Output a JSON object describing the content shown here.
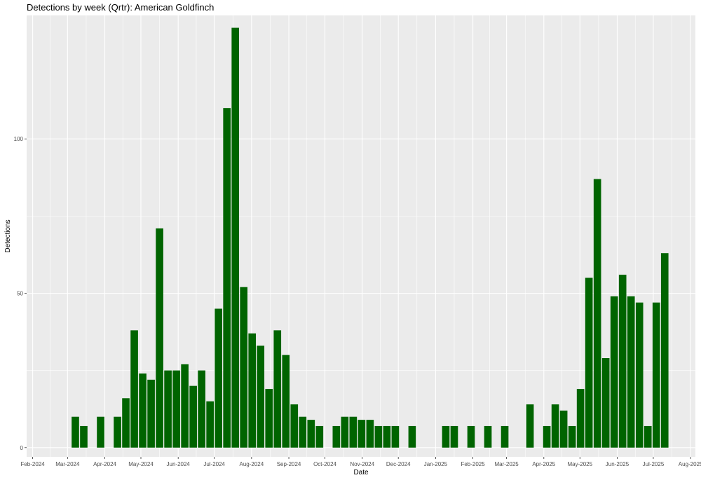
{
  "chart_data": {
    "type": "bar",
    "title": "Detections by week (Qrtr): American Goldfinch",
    "xlabel": "Date",
    "ylabel": "Detections",
    "ylim": [
      -3,
      140
    ],
    "yticks": [
      0,
      50,
      100
    ],
    "bar_color": "#006400",
    "panel_bg": "#ebebeb",
    "grid": true,
    "x_domain": [
      "2024-01-27",
      "2025-08-05"
    ],
    "xtick_labels": [
      {
        "date": "2024-02-01",
        "label": "Feb-2024"
      },
      {
        "date": "2024-03-01",
        "label": "Mar-2024"
      },
      {
        "date": "2024-04-01",
        "label": "Apr-2024"
      },
      {
        "date": "2024-05-01",
        "label": "May-2024"
      },
      {
        "date": "2024-06-01",
        "label": "Jun-2024"
      },
      {
        "date": "2024-07-01",
        "label": "Jul-2024"
      },
      {
        "date": "2024-08-01",
        "label": "Aug-2024"
      },
      {
        "date": "2024-09-01",
        "label": "Sep-2024"
      },
      {
        "date": "2024-10-01",
        "label": "Oct-2024"
      },
      {
        "date": "2024-11-01",
        "label": "Nov-2024"
      },
      {
        "date": "2024-12-01",
        "label": "Dec-2024"
      },
      {
        "date": "2025-01-01",
        "label": "Jan-2025"
      },
      {
        "date": "2025-02-01",
        "label": "Feb-2025"
      },
      {
        "date": "2025-03-01",
        "label": "Mar-2025"
      },
      {
        "date": "2025-04-01",
        "label": "Apr-2025"
      },
      {
        "date": "2025-05-01",
        "label": "May-2025"
      },
      {
        "date": "2025-06-01",
        "label": "Jun-2025"
      },
      {
        "date": "2025-07-01",
        "label": "Jul-2025"
      },
      {
        "date": "2025-08-01",
        "label": "Aug-2025"
      }
    ],
    "x": [
      "2024-03-04",
      "2024-03-11",
      "2024-03-25",
      "2024-04-08",
      "2024-04-15",
      "2024-04-22",
      "2024-04-29",
      "2024-05-06",
      "2024-05-13",
      "2024-05-20",
      "2024-05-27",
      "2024-06-03",
      "2024-06-10",
      "2024-06-17",
      "2024-06-24",
      "2024-07-01",
      "2024-07-08",
      "2024-07-15",
      "2024-07-22",
      "2024-07-29",
      "2024-08-05",
      "2024-08-12",
      "2024-08-19",
      "2024-08-26",
      "2024-09-02",
      "2024-09-09",
      "2024-09-16",
      "2024-09-23",
      "2024-10-07",
      "2024-10-14",
      "2024-10-21",
      "2024-10-28",
      "2024-11-04",
      "2024-11-11",
      "2024-11-18",
      "2024-11-25",
      "2024-12-09",
      "2025-01-06",
      "2025-01-13",
      "2025-01-27",
      "2025-02-10",
      "2025-02-24",
      "2025-03-17",
      "2025-03-31",
      "2025-04-07",
      "2025-04-14",
      "2025-04-21",
      "2025-04-28",
      "2025-05-05",
      "2025-05-12",
      "2025-05-19",
      "2025-05-26",
      "2025-06-02",
      "2025-06-09",
      "2025-06-16",
      "2025-06-23",
      "2025-06-30",
      "2025-07-07"
    ],
    "values": [
      10,
      7,
      10,
      10,
      16,
      38,
      24,
      22,
      71,
      25,
      25,
      27,
      20,
      25,
      15,
      45,
      110,
      136,
      52,
      37,
      33,
      19,
      38,
      30,
      14,
      10,
      9,
      7,
      7,
      10,
      10,
      9,
      9,
      7,
      7,
      7,
      7,
      7,
      7,
      7,
      7,
      7,
      14,
      7,
      14,
      12,
      7,
      19,
      55,
      87,
      29,
      49,
      56,
      49,
      47,
      7,
      47,
      63
    ]
  }
}
